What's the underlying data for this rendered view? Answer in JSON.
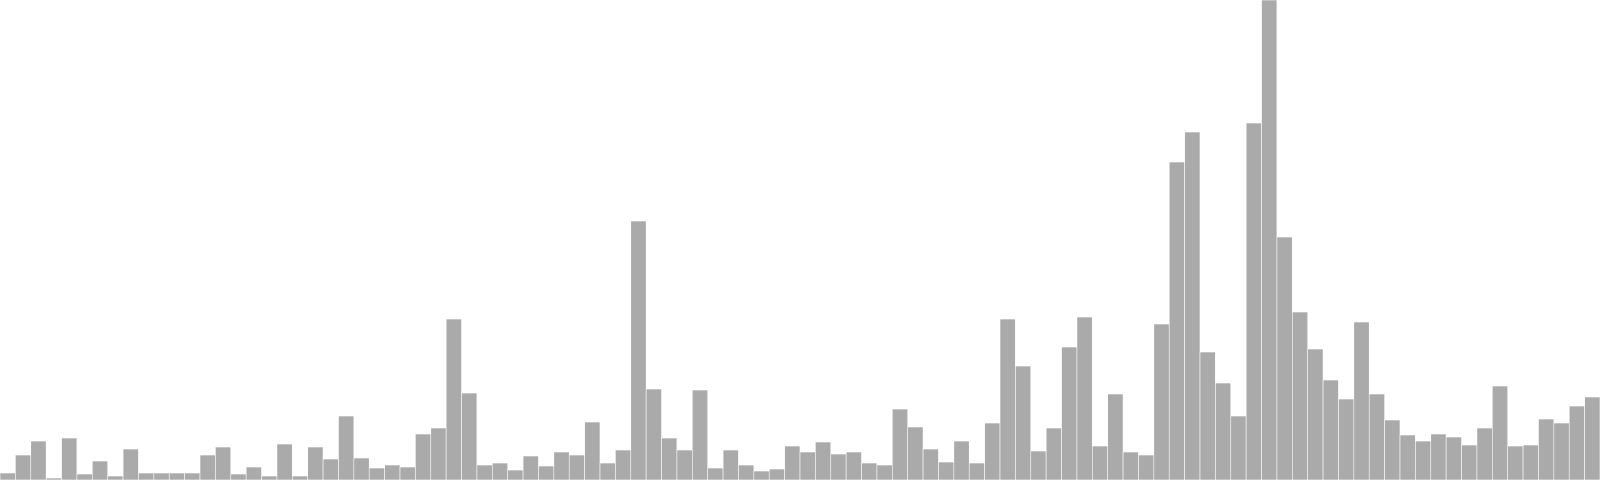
{
  "chart_data": {
    "type": "bar",
    "bar_color": "#aaaaaa",
    "bar_edge_color": "#ffffff",
    "axes_visible": false,
    "grid": false,
    "title": "",
    "xlabel": "",
    "ylabel": "",
    "ylim": [
      0,
      480
    ],
    "values": [
      7,
      25,
      39,
      2,
      42,
      6,
      19,
      4,
      31,
      7,
      7,
      7,
      7,
      25,
      33,
      6,
      13,
      4,
      36,
      4,
      33,
      21,
      64,
      22,
      12,
      15,
      13,
      46,
      52,
      161,
      87,
      15,
      17,
      10,
      24,
      14,
      28,
      25,
      58,
      17,
      30,
      259,
      91,
      42,
      30,
      90,
      12,
      30,
      15,
      9,
      11,
      34,
      28,
      38,
      26,
      28,
      17,
      15,
      71,
      53,
      31,
      18,
      39,
      17,
      57,
      161,
      114,
      29,
      52,
      133,
      163,
      34,
      86,
      28,
      25,
      156,
      318,
      348,
      128,
      97,
      64,
      357,
      480,
      243,
      168,
      131,
      100,
      81,
      158,
      86,
      60,
      45,
      39,
      46,
      43,
      35,
      52,
      94,
      34,
      35,
      61,
      57,
      74,
      83
    ]
  }
}
